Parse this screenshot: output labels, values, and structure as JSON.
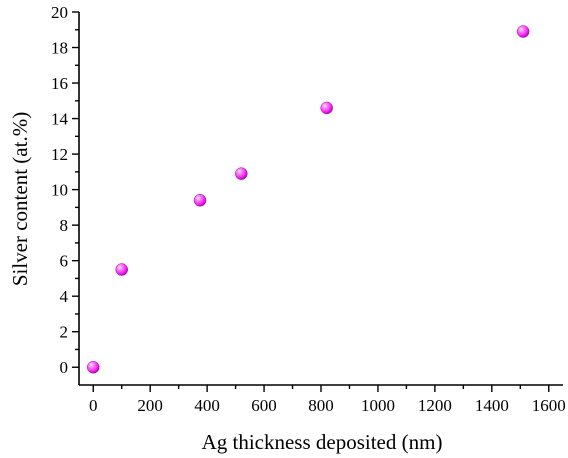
{
  "chart_data": {
    "type": "scatter",
    "xlabel": "Ag thickness deposited (nm)",
    "ylabel": "Silver content (at.%)",
    "xlim": [
      -50,
      1650
    ],
    "ylim": [
      -1,
      20
    ],
    "x_ticks": [
      "0",
      "200",
      "400",
      "600",
      "800",
      "1000",
      "1200",
      "1400",
      "1600"
    ],
    "y_ticks": [
      "0",
      "2",
      "4",
      "6",
      "8",
      "10",
      "12",
      "14",
      "16",
      "18",
      "20"
    ],
    "grid": false,
    "marker_color": "#ff33ff",
    "series": [
      {
        "x": [
          0,
          100,
          375,
          520,
          820,
          1510
        ],
        "y": [
          0,
          5.5,
          9.4,
          10.9,
          14.6,
          18.9
        ]
      }
    ]
  }
}
